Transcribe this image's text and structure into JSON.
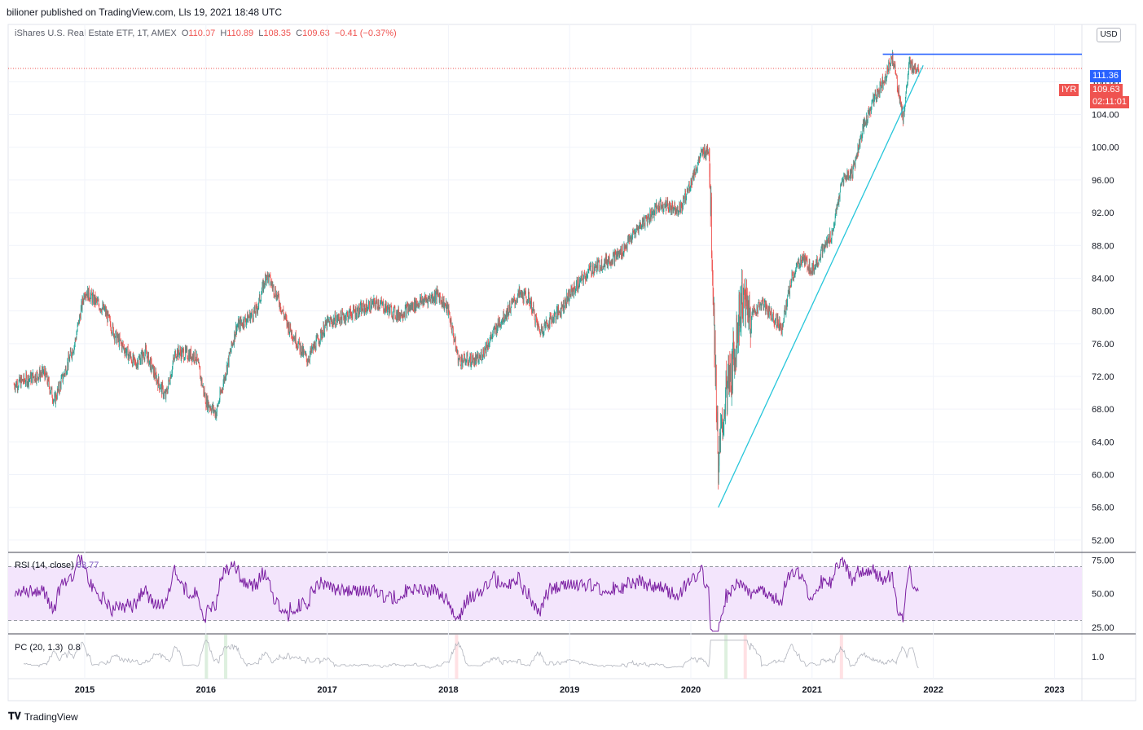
{
  "header": {
    "published_text": "bilioner published on TradingView.com, Lls 19, 2021 18:48 UTC"
  },
  "symbol": {
    "name": "iShares U.S. Real Estate ETF, 1T, AMEX",
    "o_label": "O",
    "o_value": "110.07",
    "h_label": "H",
    "h_value": "110.89",
    "l_label": "L",
    "l_value": "108.35",
    "c_label": "C",
    "c_value": "109.63",
    "change": "−0.41 (−0.37%)"
  },
  "currency": "USD",
  "tags": {
    "resistance": "111.36",
    "ticker": "IYR",
    "last_price": "109.63",
    "countdown": "02:11:01"
  },
  "rsi": {
    "label": "RSI (14, close)",
    "value": "63.77"
  },
  "pc": {
    "label": "PC (20, 1.3)",
    "value": "0.8"
  },
  "footer": {
    "brand": "TradingView"
  },
  "colors": {
    "up": "#26a69a",
    "down": "#ef5350",
    "rsi_line": "#7b1fa2",
    "rsi_band": "#f3e5fc",
    "trend_line": "#26c6da",
    "resistance_line": "#2962ff"
  },
  "chart_data": {
    "type": "candlestick",
    "x_ticks": [
      "2015",
      "2016",
      "2017",
      "2018",
      "2019",
      "2020",
      "2021",
      "2022",
      "2023"
    ],
    "y_ticks": [
      "52.00",
      "56.00",
      "60.00",
      "64.00",
      "68.00",
      "72.00",
      "76.00",
      "80.00",
      "84.00",
      "88.00",
      "92.00",
      "96.00",
      "100.00",
      "104.00",
      "108.00"
    ],
    "ylim": [
      50.5,
      115
    ],
    "anchors": [
      [
        "2014-06",
        71
      ],
      [
        "2014-09",
        72.5
      ],
      [
        "2014-10",
        69
      ],
      [
        "2014-12",
        76
      ],
      [
        "2015-01",
        82.5
      ],
      [
        "2015-03",
        80
      ],
      [
        "2015-04",
        77
      ],
      [
        "2015-06",
        73.5
      ],
      [
        "2015-07",
        75
      ],
      [
        "2015-08",
        72
      ],
      [
        "2015-09",
        69.5
      ],
      [
        "2015-10",
        75
      ],
      [
        "2015-12",
        74.5
      ],
      [
        "2016-01",
        69
      ],
      [
        "2016-02",
        67.5
      ],
      [
        "2016-04",
        78
      ],
      [
        "2016-06",
        80
      ],
      [
        "2016-07",
        84.5
      ],
      [
        "2016-08",
        82
      ],
      [
        "2016-09",
        78.5
      ],
      [
        "2016-11",
        74
      ],
      [
        "2017-01",
        78.5
      ],
      [
        "2017-03",
        79.5
      ],
      [
        "2017-06",
        81
      ],
      [
        "2017-08",
        79.5
      ],
      [
        "2017-10",
        81
      ],
      [
        "2017-12",
        82
      ],
      [
        "2018-01",
        80
      ],
      [
        "2018-02",
        74
      ],
      [
        "2018-04",
        74
      ],
      [
        "2018-06",
        78.5
      ],
      [
        "2018-08",
        82
      ],
      [
        "2018-09",
        81.5
      ],
      [
        "2018-10",
        77.5
      ],
      [
        "2018-12",
        80
      ],
      [
        "2019-01",
        82
      ],
      [
        "2019-03",
        85
      ],
      [
        "2019-06",
        87
      ],
      [
        "2019-08",
        90.5
      ],
      [
        "2019-10",
        93
      ],
      [
        "2019-12",
        92.5
      ],
      [
        "2020-02",
        99
      ],
      [
        "2020-02-25",
        100
      ],
      [
        "2020-03-23",
        61
      ],
      [
        "2020-04-15",
        70
      ],
      [
        "2020-05",
        72
      ],
      [
        "2020-06",
        81.5
      ],
      [
        "2020-07",
        79.5
      ],
      [
        "2020-08",
        81
      ],
      [
        "2020-10",
        78
      ],
      [
        "2020-11",
        84
      ],
      [
        "2020-12",
        86.5
      ],
      [
        "2021-01",
        85
      ],
      [
        "2021-03",
        89.5
      ],
      [
        "2021-04",
        96
      ],
      [
        "2021-05",
        97
      ],
      [
        "2021-06",
        102
      ],
      [
        "2021-07",
        105.5
      ],
      [
        "2021-08",
        108
      ],
      [
        "2021-09-01",
        111
      ],
      [
        "2021-10-01",
        103.5
      ],
      [
        "2021-10-20",
        110
      ],
      [
        "2021-11-19",
        109.63
      ]
    ],
    "resistance_level": 111.36,
    "trend_line": [
      [
        "2020-03-23",
        56.0
      ],
      [
        "2021-12-01",
        110.0
      ]
    ],
    "rsi": {
      "y_ticks": [
        "25.00",
        "50.00",
        "75.00"
      ],
      "band": [
        30,
        70
      ],
      "ylim": [
        20,
        80
      ]
    },
    "pc": {
      "y_ticks": [
        "1.0"
      ]
    }
  }
}
